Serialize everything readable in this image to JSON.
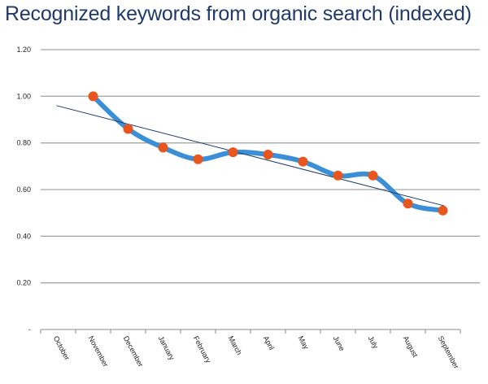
{
  "chart_data": {
    "type": "line",
    "title": "Recognized keywords from organic search (indexed)",
    "xlabel": "",
    "ylabel": "",
    "categories": [
      "October",
      "November",
      "December",
      "January",
      "February",
      "March",
      "April",
      "May",
      "June",
      "July",
      "August",
      "September"
    ],
    "series": [
      {
        "values": [
          null,
          1.0,
          0.86,
          0.78,
          0.73,
          0.76,
          0.75,
          0.72,
          0.66,
          0.66,
          0.54,
          0.51
        ],
        "color": "#3a8fd6",
        "marker_color": "#e8561e"
      }
    ],
    "trendline": {
      "type": "linear",
      "start": 0.96,
      "end": 0.53,
      "color": "#1f3a6b"
    },
    "ylim": [
      0,
      1.2
    ],
    "yticks": [
      0,
      0.2,
      0.4,
      0.6,
      0.8,
      1.0,
      1.2
    ],
    "ytick_labels": [
      "-",
      "0.20",
      "0.40",
      "0.60",
      "0.80",
      "1.00",
      "1.20"
    ],
    "grid": true,
    "legend": "none"
  }
}
